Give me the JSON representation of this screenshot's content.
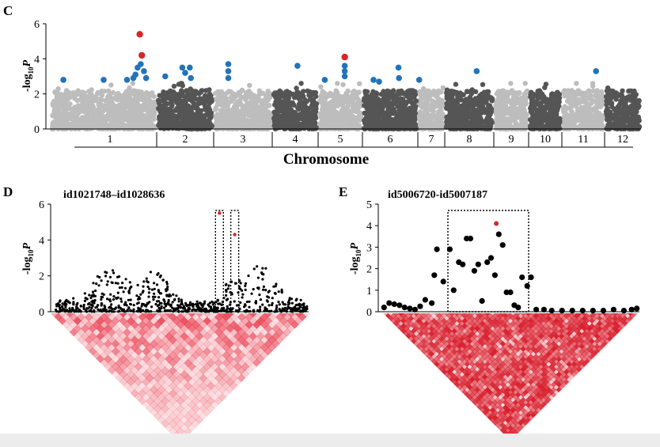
{
  "figure": {
    "panel_c_letter": "C",
    "panel_d_letter": "D",
    "panel_e_letter": "E"
  },
  "chart_data": [
    {
      "panel": "C",
      "type": "scatter",
      "subtype": "manhattan",
      "xlabel": "Chromosome",
      "ylabel": {
        "prefix": "-log",
        "sub": "10",
        "var": "P"
      },
      "ylim": [
        0,
        6
      ],
      "yticks": [
        0,
        2,
        4,
        6
      ],
      "chromosomes": [
        "1",
        "2",
        "3",
        "4",
        "5",
        "6",
        "7",
        "8",
        "9",
        "10",
        "11",
        "12"
      ],
      "background_colors": [
        "#bdbdbd",
        "#555555"
      ],
      "suggestive_color": "#2273b9",
      "significant_color": "#d62728",
      "suggestive_points": [
        {
          "chr": 1,
          "pos": 0.12,
          "y": 2.8
        },
        {
          "chr": 1,
          "pos": 0.5,
          "y": 2.8
        },
        {
          "chr": 1,
          "pos": 0.72,
          "y": 2.8
        },
        {
          "chr": 1,
          "pos": 0.78,
          "y": 2.9
        },
        {
          "chr": 1,
          "pos": 0.8,
          "y": 3.1
        },
        {
          "chr": 1,
          "pos": 0.82,
          "y": 3.5
        },
        {
          "chr": 1,
          "pos": 0.85,
          "y": 3.7
        },
        {
          "chr": 1,
          "pos": 0.88,
          "y": 3.3
        },
        {
          "chr": 1,
          "pos": 0.9,
          "y": 2.9
        },
        {
          "chr": 2,
          "pos": 0.15,
          "y": 3.0
        },
        {
          "chr": 2,
          "pos": 0.45,
          "y": 3.5
        },
        {
          "chr": 2,
          "pos": 0.5,
          "y": 3.2
        },
        {
          "chr": 2,
          "pos": 0.58,
          "y": 3.5
        },
        {
          "chr": 2,
          "pos": 0.6,
          "y": 2.9
        },
        {
          "chr": 3,
          "pos": 0.25,
          "y": 3.7
        },
        {
          "chr": 3,
          "pos": 0.25,
          "y": 3.3
        },
        {
          "chr": 3,
          "pos": 0.25,
          "y": 2.9
        },
        {
          "chr": 4,
          "pos": 0.55,
          "y": 3.6
        },
        {
          "chr": 5,
          "pos": 0.15,
          "y": 2.8
        },
        {
          "chr": 5,
          "pos": 0.6,
          "y": 3.6
        },
        {
          "chr": 5,
          "pos": 0.6,
          "y": 3.3
        },
        {
          "chr": 5,
          "pos": 0.6,
          "y": 3.0
        },
        {
          "chr": 6,
          "pos": 0.2,
          "y": 2.8
        },
        {
          "chr": 6,
          "pos": 0.3,
          "y": 2.7
        },
        {
          "chr": 6,
          "pos": 0.65,
          "y": 3.5
        },
        {
          "chr": 6,
          "pos": 0.66,
          "y": 2.9
        },
        {
          "chr": 7,
          "pos": 0.05,
          "y": 2.8
        },
        {
          "chr": 8,
          "pos": 0.65,
          "y": 3.3
        },
        {
          "chr": 11,
          "pos": 0.8,
          "y": 3.3
        }
      ],
      "significant_points": [
        {
          "chr": 1,
          "pos": 0.84,
          "y": 5.4
        },
        {
          "chr": 1,
          "pos": 0.86,
          "y": 4.2
        },
        {
          "chr": 5,
          "pos": 0.6,
          "y": 4.1
        }
      ]
    },
    {
      "panel": "D",
      "type": "scatter",
      "title": "id1021748–id1028636",
      "ylabel": {
        "prefix": "-log",
        "sub": "10",
        "var": "P"
      },
      "ylim": [
        0,
        6
      ],
      "yticks": [
        0,
        2,
        4,
        6
      ],
      "highlight_color": "#d62728",
      "highlight_points": [
        {
          "x": 0.65,
          "y": 5.5
        },
        {
          "x": 0.71,
          "y": 4.3
        }
      ],
      "ld_color": "#e8384a"
    },
    {
      "panel": "E",
      "type": "scatter",
      "title": "id5006720-id5007187",
      "ylabel": {
        "prefix": "-log",
        "sub": "10",
        "var": "P"
      },
      "ylim": [
        0,
        5
      ],
      "yticks": [
        0,
        1,
        2,
        3,
        4,
        5
      ],
      "highlight_color": "#d62728",
      "points": [
        {
          "x": 0.01,
          "y": 0.2
        },
        {
          "x": 0.03,
          "y": 0.4
        },
        {
          "x": 0.05,
          "y": 0.35
        },
        {
          "x": 0.07,
          "y": 0.3
        },
        {
          "x": 0.09,
          "y": 0.2
        },
        {
          "x": 0.11,
          "y": 0.15
        },
        {
          "x": 0.13,
          "y": 0.1
        },
        {
          "x": 0.15,
          "y": 0.25
        },
        {
          "x": 0.17,
          "y": 0.55
        },
        {
          "x": 0.195,
          "y": 0.4
        },
        {
          "x": 0.205,
          "y": 1.7
        },
        {
          "x": 0.215,
          "y": 2.9
        },
        {
          "x": 0.24,
          "y": 1.4
        },
        {
          "x": 0.265,
          "y": 2.9
        },
        {
          "x": 0.28,
          "y": 1.0
        },
        {
          "x": 0.3,
          "y": 2.3
        },
        {
          "x": 0.315,
          "y": 2.2
        },
        {
          "x": 0.33,
          "y": 3.4
        },
        {
          "x": 0.345,
          "y": 3.4
        },
        {
          "x": 0.36,
          "y": 1.9
        },
        {
          "x": 0.375,
          "y": 2.2
        },
        {
          "x": 0.39,
          "y": 0.5
        },
        {
          "x": 0.41,
          "y": 2.3
        },
        {
          "x": 0.425,
          "y": 2.5
        },
        {
          "x": 0.44,
          "y": 1.7
        },
        {
          "x": 0.455,
          "y": 3.6
        },
        {
          "x": 0.47,
          "y": 3.1
        },
        {
          "x": 0.485,
          "y": 0.9
        },
        {
          "x": 0.5,
          "y": 0.9
        },
        {
          "x": 0.515,
          "y": 0.3
        },
        {
          "x": 0.53,
          "y": 0.2
        },
        {
          "x": 0.545,
          "y": 1.6
        },
        {
          "x": 0.565,
          "y": 1.2
        },
        {
          "x": 0.58,
          "y": 1.6
        },
        {
          "x": 0.6,
          "y": 0.1
        },
        {
          "x": 0.63,
          "y": 0.1
        },
        {
          "x": 0.66,
          "y": 0.05
        },
        {
          "x": 0.7,
          "y": 0.05
        },
        {
          "x": 0.74,
          "y": 0.05
        },
        {
          "x": 0.78,
          "y": 0.05
        },
        {
          "x": 0.82,
          "y": 0.05
        },
        {
          "x": 0.86,
          "y": 0.05
        },
        {
          "x": 0.9,
          "y": 0.1
        },
        {
          "x": 0.94,
          "y": 0.05
        },
        {
          "x": 0.97,
          "y": 0.1
        },
        {
          "x": 0.99,
          "y": 0.15
        }
      ],
      "highlight_points": [
        {
          "x": 0.445,
          "y": 4.1
        }
      ],
      "ld_color": "#d8202e"
    }
  ]
}
